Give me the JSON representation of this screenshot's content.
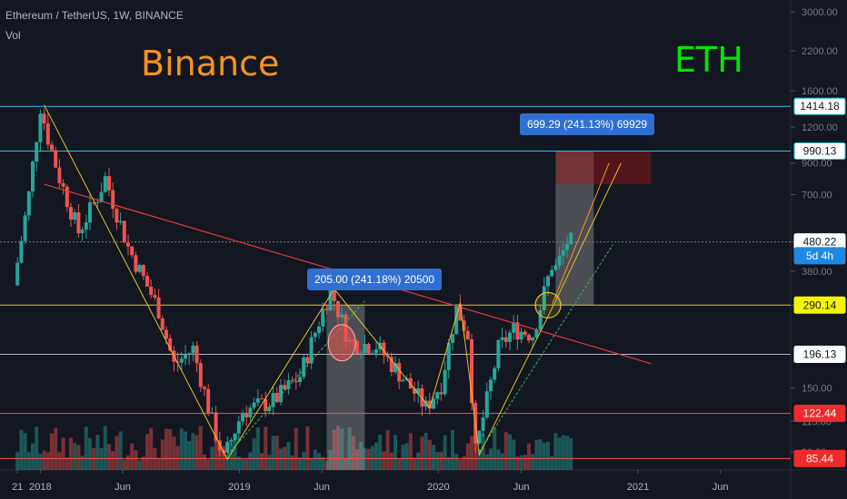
{
  "header": {
    "symbol_line": "Ethereum / TetherUS, 1W, BINANCE",
    "vol_label": "Vol"
  },
  "overlay_text": {
    "binance": "Binance",
    "eth": "ETH"
  },
  "measurements": [
    {
      "text": "205.00 (241.18%) 20500"
    },
    {
      "text": "699.29 (241.13%) 69929"
    }
  ],
  "colors": {
    "background": "#131722",
    "up": "#26a69a",
    "down": "#ef5350",
    "trendline_red": "#e53935",
    "trendline_yellow": "#e6c229",
    "trendline_green": "#4caf50",
    "cyan_level": "#26c6da",
    "measure_box": "#2f6fd1"
  },
  "chart_data": {
    "type": "candlestick",
    "symbol": "Ethereum / TetherUS",
    "interval": "1W",
    "exchange": "BINANCE",
    "y_scale": "log",
    "ylim": [
      78,
      3300
    ],
    "y_ticks": [
      "3000.00",
      "2200.00",
      "1600.00",
      "1200.00",
      "900.00",
      "700.00",
      "480.00",
      "380.00",
      "290.00",
      "150.00",
      "115.00",
      "90.00"
    ],
    "y_tick_values": [
      3000,
      2200,
      1600,
      1200,
      900,
      700,
      480,
      380,
      290,
      150,
      115,
      90
    ],
    "x_ticks": [
      "21",
      "2018",
      "Jun",
      "2019",
      "Jun",
      "2020",
      "Jun",
      "2021",
      "Jun"
    ],
    "price_labels": [
      {
        "text": "1414.18",
        "value": 1414.18,
        "style": "cyan"
      },
      {
        "text": "990.13",
        "value": 990.13,
        "style": "cyan"
      },
      {
        "text": "480.22",
        "value": 480.22,
        "style": "current"
      },
      {
        "text": "5d 4h",
        "value": 430,
        "style": "countdown"
      },
      {
        "text": "290.14",
        "value": 290.14,
        "style": "yellow"
      },
      {
        "text": "196.13",
        "value": 196.13,
        "style": "white"
      },
      {
        "text": "122.44",
        "value": 122.44,
        "style": "red"
      },
      {
        "text": "85.44",
        "value": 85.44,
        "style": "red"
      }
    ],
    "horizontal_levels": [
      {
        "value": 1414.18,
        "color": "#26c6da"
      },
      {
        "value": 990.13,
        "color": "#26c6da"
      },
      {
        "value": 480.22,
        "color": "#787b86",
        "dashed": true
      },
      {
        "value": 290.14,
        "color": "#e6c229"
      },
      {
        "value": 196.13,
        "color": "#b2b5be"
      },
      {
        "value": 122.44,
        "color": "#ef5350"
      },
      {
        "value": 85.44,
        "color": "#ef5350"
      }
    ],
    "price_path": [
      [
        "2017-11-20",
        340
      ],
      [
        "2017-12-18",
        700
      ],
      [
        "2018-01-08",
        1420
      ],
      [
        "2018-01-22",
        1100
      ],
      [
        "2018-02-12",
        800
      ],
      [
        "2018-03-19",
        520
      ],
      [
        "2018-04-23",
        690
      ],
      [
        "2018-05-07",
        800
      ],
      [
        "2018-06-18",
        460
      ],
      [
        "2018-08-13",
        280
      ],
      [
        "2018-09-10",
        180
      ],
      [
        "2018-10-15",
        205
      ],
      [
        "2018-11-19",
        115
      ],
      [
        "2018-12-10",
        85
      ],
      [
        "2019-01-14",
        125
      ],
      [
        "2019-03-11",
        135
      ],
      [
        "2019-04-29",
        165
      ],
      [
        "2019-06-03",
        255
      ],
      [
        "2019-06-24",
        330
      ],
      [
        "2019-07-29",
        215
      ],
      [
        "2019-09-16",
        210
      ],
      [
        "2019-10-21",
        175
      ],
      [
        "2019-11-25",
        145
      ],
      [
        "2019-12-16",
        128
      ],
      [
        "2020-01-13",
        155
      ],
      [
        "2020-02-10",
        285
      ],
      [
        "2020-03-02",
        230
      ],
      [
        "2020-03-16",
        90
      ],
      [
        "2020-04-27",
        205
      ],
      [
        "2020-05-25",
        240
      ],
      [
        "2020-06-29",
        230
      ],
      [
        "2020-07-20",
        320
      ],
      [
        "2020-08-03",
        400
      ],
      [
        "2020-08-10",
        390
      ],
      [
        "2020-08-24",
        445
      ],
      [
        "2020-08-31",
        480
      ]
    ]
  }
}
